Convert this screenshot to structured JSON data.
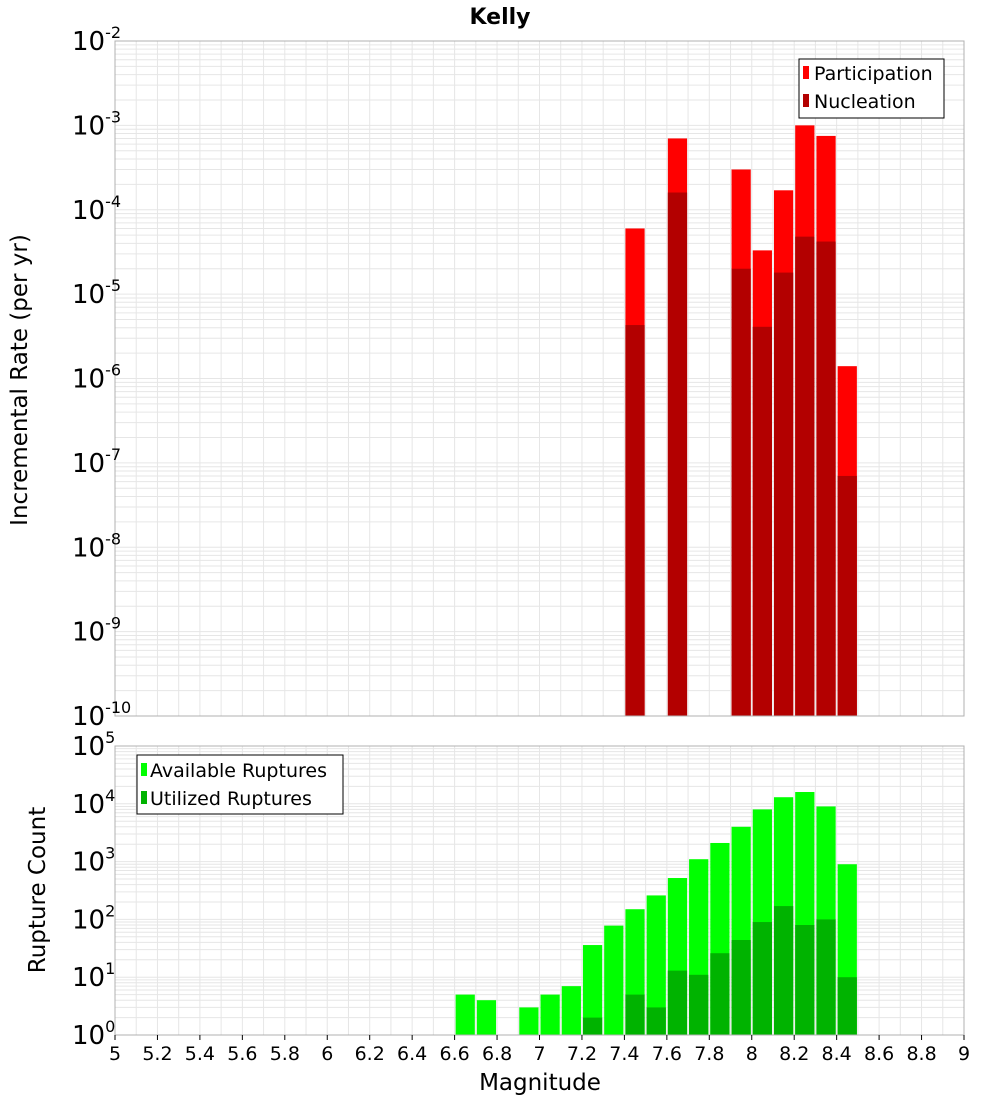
{
  "title": "Kelly",
  "colors": {
    "participation": "#ff0000",
    "nucleation": "#b30000",
    "available": "#00ff00",
    "utilized": "#00b300",
    "grid": "#e6e6e6",
    "frame": "#b0b0b0"
  },
  "chart_data": [
    {
      "type": "bar",
      "scale": "log",
      "ylabel": "Incremental Rate (per yr)",
      "ylim_exp": [
        -10,
        -2
      ],
      "xlim": [
        5,
        9
      ],
      "bin_width": 0.1,
      "legend": {
        "placement": "top-right",
        "entries": [
          "Participation",
          "Nucleation"
        ]
      },
      "series": [
        {
          "name": "Participation",
          "x": [
            7.45,
            7.65,
            7.95,
            8.05,
            8.15,
            8.25,
            8.35,
            8.45
          ],
          "values": [
            6e-05,
            0.0007,
            0.0003,
            3.3e-05,
            0.00017,
            0.001,
            0.00075,
            1.4e-06
          ]
        },
        {
          "name": "Nucleation",
          "x": [
            7.45,
            7.65,
            7.95,
            8.05,
            8.15,
            8.25,
            8.35,
            8.45
          ],
          "values": [
            4.3e-06,
            0.00016,
            2e-05,
            4.1e-06,
            1.8e-05,
            4.8e-05,
            4.2e-05,
            7e-08
          ]
        }
      ]
    },
    {
      "type": "bar",
      "scale": "log",
      "xlabel": "Magnitude",
      "ylabel": "Rupture Count",
      "ylim_exp": [
        0,
        5
      ],
      "xlim": [
        5,
        9
      ],
      "bin_width": 0.1,
      "legend": {
        "placement": "top-left",
        "entries": [
          "Available Ruptures",
          "Utilized Ruptures"
        ]
      },
      "x_ticks": [
        "5",
        "5.2",
        "5.4",
        "5.6",
        "5.8",
        "6",
        "6.2",
        "6.4",
        "6.6",
        "6.8",
        "7",
        "7.2",
        "7.4",
        "7.6",
        "7.8",
        "8",
        "8.2",
        "8.4",
        "8.6",
        "8.8",
        "9"
      ],
      "series": [
        {
          "name": "Available Ruptures",
          "x": [
            6.65,
            6.75,
            6.95,
            7.05,
            7.15,
            7.25,
            7.35,
            7.45,
            7.55,
            7.65,
            7.75,
            7.85,
            7.95,
            8.05,
            8.15,
            8.25,
            8.35,
            8.45
          ],
          "values": [
            5,
            4,
            3,
            5,
            7,
            36,
            78,
            150,
            260,
            520,
            1100,
            2100,
            4000,
            8000,
            13000,
            16000,
            9000,
            900
          ]
        },
        {
          "name": "Utilized Ruptures",
          "x": [
            7.25,
            7.35,
            7.45,
            7.55,
            7.65,
            7.75,
            7.85,
            7.95,
            8.05,
            8.15,
            8.25,
            8.35,
            8.45
          ],
          "values": [
            2,
            1,
            5,
            3,
            13,
            11,
            26,
            44,
            90,
            170,
            80,
            100,
            10
          ]
        }
      ]
    }
  ]
}
